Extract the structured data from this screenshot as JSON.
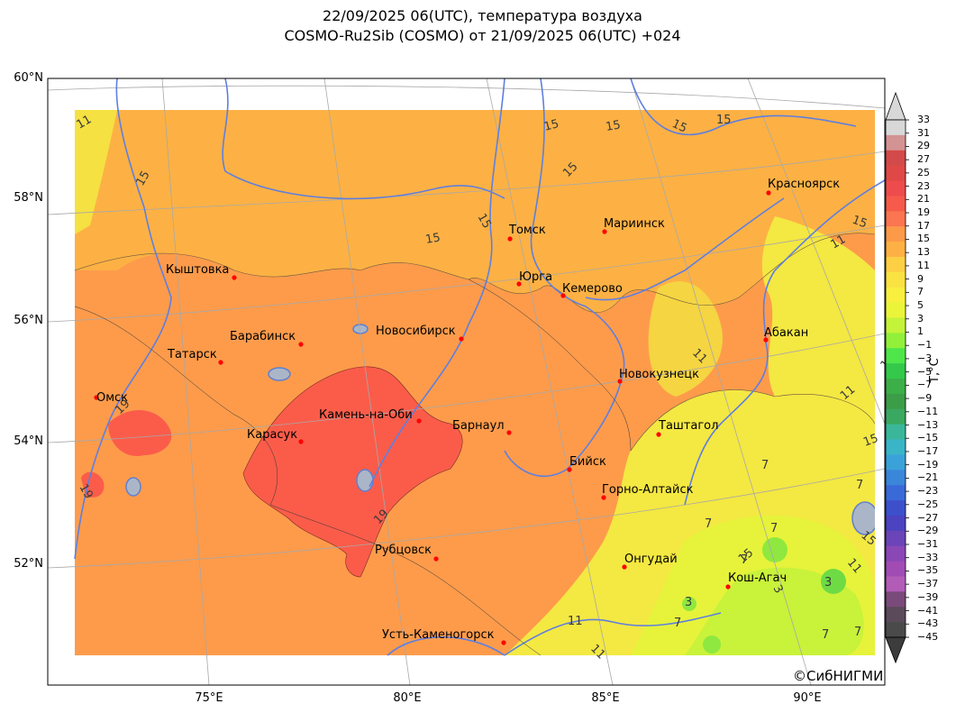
{
  "title": {
    "line1": "22/09/2025 06(UTC), температура воздуха",
    "line2": "COSMO-Ru2Sib (COSMO) от 21/09/2025 06(UTC) +024"
  },
  "lat_labels": [
    "60°N",
    "58°N",
    "56°N",
    "54°N",
    "52°N"
  ],
  "lon_labels": [
    "75°E",
    "80°E",
    "85°E",
    "90°E"
  ],
  "colorbar": {
    "title": "T,°C",
    "ticks": [
      "33",
      "31",
      "29",
      "27",
      "25",
      "23",
      "21",
      "19",
      "17",
      "15",
      "13",
      "11",
      "9",
      "7",
      "5",
      "3",
      "1",
      "−1",
      "−3",
      "−5",
      "−7",
      "−9",
      "−11",
      "−13",
      "−15",
      "−17",
      "−19",
      "−21",
      "−23",
      "−25",
      "−27",
      "−29",
      "−31",
      "−33",
      "−35",
      "−37",
      "−39",
      "−41",
      "−43",
      "−45"
    ],
    "colors": [
      "#d8d8d8",
      "#d49393",
      "#d24a4a",
      "#e04848",
      "#ee4c4c",
      "#f55a4a",
      "#fb7550",
      "#fd9a4a",
      "#fdb144",
      "#fdcf44",
      "#fbe243",
      "#f8ef3f",
      "#eaf53a",
      "#c4f33a",
      "#92f03a",
      "#4fe64a",
      "#34c94a",
      "#3caf48",
      "#3c9d48",
      "#3aa860",
      "#3ab79a",
      "#3ab5c7",
      "#3aa2d8",
      "#3a86da",
      "#3a6ad8",
      "#3d50cc",
      "#4b43c0",
      "#6a44b8",
      "#8a47b6",
      "#a04cb4",
      "#b25cb8",
      "#7a4a7a",
      "#5a4a5a",
      "#4a4a4a"
    ]
  },
  "cities": [
    {
      "name": "Красноярск"
    },
    {
      "name": "Томск"
    },
    {
      "name": "Мариинск"
    },
    {
      "name": "Кыштовка"
    },
    {
      "name": "Юрга"
    },
    {
      "name": "Кемерово"
    },
    {
      "name": "Абакан"
    },
    {
      "name": "Барабинск"
    },
    {
      "name": "Новосибирск"
    },
    {
      "name": "Татарск"
    },
    {
      "name": "Новокузнецк"
    },
    {
      "name": "Омск"
    },
    {
      "name": "Камень-на-Оби"
    },
    {
      "name": "Барнаул"
    },
    {
      "name": "Карасук"
    },
    {
      "name": "Таштагол"
    },
    {
      "name": "Бийск"
    },
    {
      "name": "Горно-Алтайск"
    },
    {
      "name": "Рубцовск"
    },
    {
      "name": "Онгудай"
    },
    {
      "name": "Кош-Агач"
    },
    {
      "name": "Усть-Каменогорск"
    }
  ],
  "isoline_labels": [
    "11",
    "15",
    "15",
    "15",
    "15",
    "15",
    "15",
    "15",
    "15",
    "15",
    "11",
    "11",
    "11",
    "11",
    "19",
    "19",
    "19",
    "7",
    "7",
    "7",
    "7",
    "7",
    "3",
    "3",
    "3",
    "7",
    "11",
    "15",
    "15",
    "11",
    "7",
    "7",
    "11",
    "15"
  ],
  "copyright": "©СибНИГМИ"
}
